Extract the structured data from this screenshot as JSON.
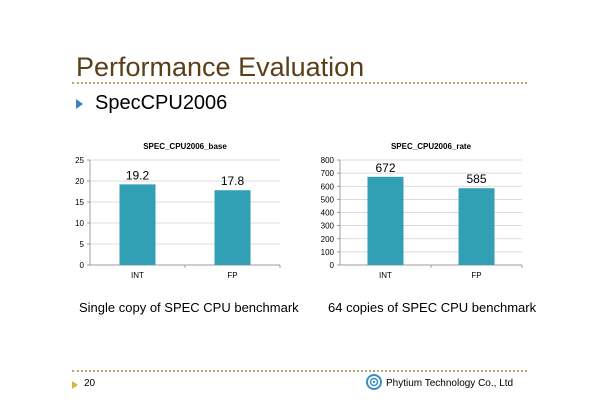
{
  "slide": {
    "title": "Performance Evaluation",
    "bullet": "SpecCPU2006",
    "captions": [
      "Single copy of SPEC CPU benchmark",
      "64 copies of SPEC CPU benchmark"
    ],
    "page_number": "20",
    "company": "Phytium Technology Co., Ltd",
    "colors": {
      "title": "#5b3f19",
      "bar": "#31a0b4",
      "rule": "#b8a66a",
      "bullet": "#3c83b8",
      "footer_arrow": "#d7b543"
    }
  },
  "chart_data": [
    {
      "type": "bar",
      "title": "SPEC_CPU2006_base",
      "categories": [
        "INT",
        "FP"
      ],
      "values": [
        19.2,
        17.8
      ],
      "value_labels": [
        "19.2",
        "17.8"
      ],
      "ylim": [
        0,
        25
      ],
      "yticks": [
        "0",
        "5",
        "10",
        "15",
        "20",
        "25"
      ],
      "grid": true
    },
    {
      "type": "bar",
      "title": "SPEC_CPU2006_rate",
      "categories": [
        "INT",
        "FP"
      ],
      "values": [
        672,
        585
      ],
      "value_labels": [
        "672",
        "585"
      ],
      "ylim": [
        0,
        800
      ],
      "yticks": [
        "0",
        "100",
        "200",
        "300",
        "400",
        "500",
        "600",
        "700",
        "800"
      ],
      "grid": true
    }
  ]
}
